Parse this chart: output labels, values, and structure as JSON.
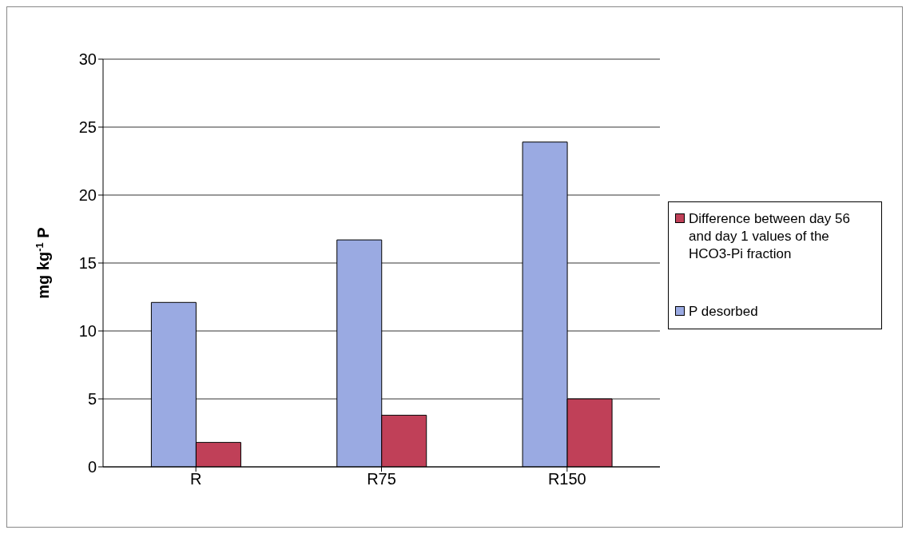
{
  "chart_data": {
    "type": "bar",
    "ylabel": "mg kg$^{-1}$ P",
    "categories": [
      "R",
      "R75",
      "R150"
    ],
    "series": [
      {
        "name": "P desorbed",
        "color": "#9aaae2",
        "values": [
          12.1,
          16.7,
          23.9
        ]
      },
      {
        "name": "Difference between day 56 and day 1 values of the HCO3-Pi fraction",
        "color": "#c04058",
        "values": [
          1.8,
          3.8,
          5.0
        ]
      }
    ],
    "ylim": [
      0,
      30
    ],
    "yticks": [
      0,
      5,
      10,
      15,
      20,
      25,
      30
    ],
    "grid": "y",
    "legend": "right"
  }
}
